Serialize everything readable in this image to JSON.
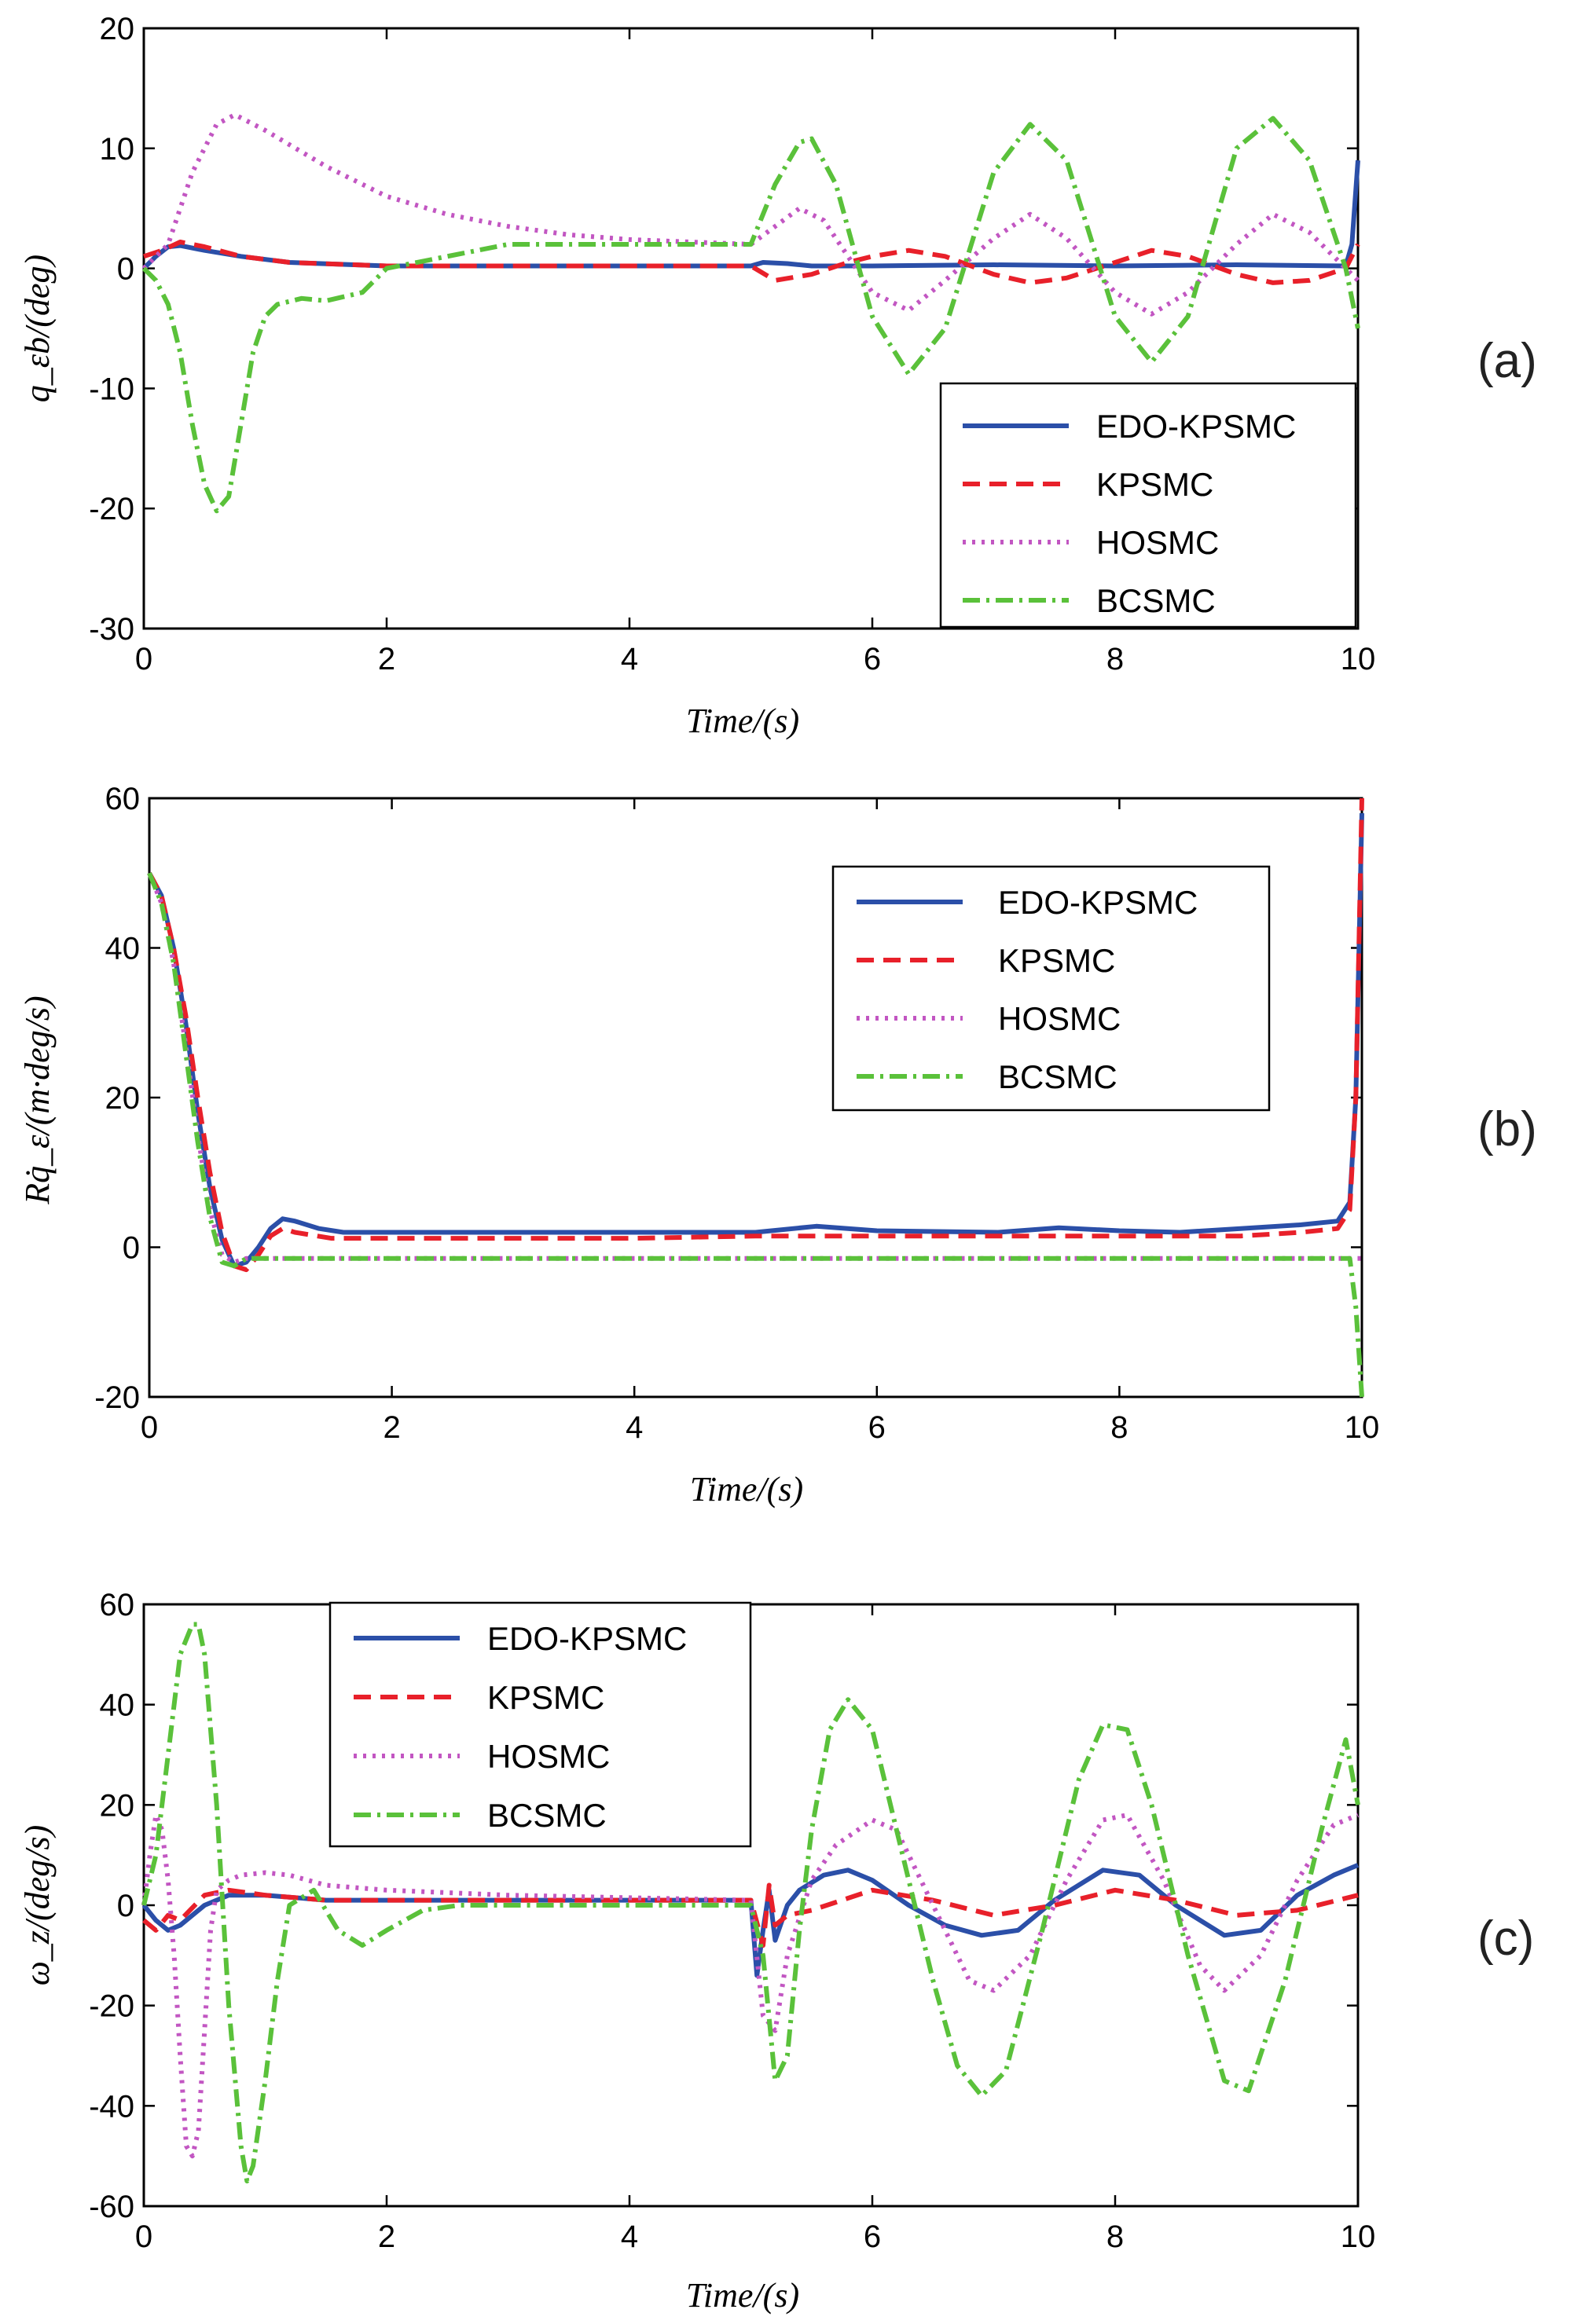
{
  "figure": {
    "panels": [
      {
        "tag": "(a)",
        "ylabel": "q_εb/(deg)",
        "xlabel": "Time/(s)",
        "chart_index": 0
      },
      {
        "tag": "(b)",
        "ylabel": "Rq̇_ε/(m·deg/s)",
        "xlabel": "Time/(s)",
        "chart_index": 1
      },
      {
        "tag": "(c)",
        "ylabel": "ω_z/(deg/s)",
        "xlabel": "Time/(s)",
        "chart_index": 2
      }
    ]
  },
  "chart_data": [
    {
      "type": "line",
      "title": "",
      "xlabel": "Time/(s)",
      "ylabel": "q_εb/(deg)",
      "xlim": [
        0,
        10
      ],
      "ylim": [
        -30,
        20
      ],
      "xticks": [
        0,
        2,
        4,
        6,
        8,
        10
      ],
      "yticks": [
        -30,
        -20,
        -10,
        0,
        10,
        20
      ],
      "legend": "bottom-right",
      "series": [
        {
          "name": "EDO-KPSMC",
          "color": "#2b4fa8",
          "style": "solid",
          "x": [
            0,
            0.1,
            0.2,
            0.3,
            0.5,
            0.8,
            1.2,
            2,
            3,
            4,
            5,
            5.1,
            5.3,
            5.5,
            6,
            7,
            8,
            9,
            9.9,
            9.95,
            10
          ],
          "y": [
            0,
            1,
            1.8,
            1.9,
            1.5,
            1,
            0.5,
            0.2,
            0.2,
            0.2,
            0.2,
            0.5,
            0.4,
            0.2,
            0.2,
            0.3,
            0.2,
            0.3,
            0.2,
            2,
            9
          ]
        },
        {
          "name": "KPSMC",
          "color": "#e8202a",
          "style": "dashed",
          "x": [
            0,
            0.15,
            0.3,
            0.5,
            0.8,
            1.2,
            2,
            3,
            4,
            5,
            5.2,
            5.5,
            5.8,
            6,
            6.3,
            6.6,
            7,
            7.3,
            7.6,
            8,
            8.3,
            8.6,
            9,
            9.3,
            9.6,
            9.9,
            10
          ],
          "y": [
            1,
            1.5,
            2.2,
            1.8,
            1,
            0.5,
            0.2,
            0.2,
            0.2,
            0.2,
            -1,
            -0.5,
            0.5,
            1,
            1.5,
            1,
            -0.5,
            -1.2,
            -0.8,
            0.5,
            1.5,
            1,
            -0.5,
            -1.2,
            -1,
            0,
            2
          ]
        },
        {
          "name": "HOSMC",
          "color": "#c256c2",
          "style": "dotted",
          "x": [
            0,
            0.2,
            0.4,
            0.6,
            0.75,
            1,
            1.5,
            2,
            2.5,
            3,
            3.5,
            4,
            4.5,
            5,
            5.2,
            5.4,
            5.6,
            5.8,
            6,
            6.3,
            6.6,
            7,
            7.3,
            7.6,
            8,
            8.3,
            8.6,
            9,
            9.3,
            9.6,
            10
          ],
          "y": [
            0,
            2,
            8,
            12,
            12.8,
            11.5,
            8.5,
            6,
            4.5,
            3.5,
            2.8,
            2.4,
            2.2,
            2,
            3.5,
            5,
            4,
            1,
            -2,
            -3.5,
            -1,
            2.5,
            4.5,
            2.5,
            -2,
            -3.8,
            -2,
            2,
            4.5,
            3,
            -1
          ]
        },
        {
          "name": "BCSMC",
          "color": "#5ac13a",
          "style": "dashdot",
          "x": [
            0,
            0.1,
            0.2,
            0.3,
            0.4,
            0.5,
            0.6,
            0.7,
            0.8,
            0.9,
            1,
            1.1,
            1.3,
            1.5,
            1.8,
            2,
            2.5,
            3,
            4,
            5,
            5.2,
            5.4,
            5.5,
            5.7,
            6,
            6.3,
            6.6,
            7,
            7.3,
            7.6,
            8,
            8.3,
            8.6,
            9,
            9.3,
            9.6,
            9.9,
            10
          ],
          "y": [
            0,
            -1,
            -3,
            -7,
            -13,
            -18,
            -20.2,
            -19,
            -13,
            -7,
            -4,
            -3,
            -2.5,
            -2.7,
            -2,
            0,
            1,
            2,
            2,
            2,
            7,
            10.5,
            10.8,
            7,
            -4,
            -8.8,
            -5,
            8,
            12,
            9,
            -4,
            -7.8,
            -4,
            10,
            12.5,
            9,
            0,
            -5
          ]
        }
      ]
    },
    {
      "type": "line",
      "title": "",
      "xlabel": "Time/(s)",
      "ylabel": "Rq̇_ε/(m·deg/s)",
      "xlim": [
        0,
        10
      ],
      "ylim": [
        -20,
        60
      ],
      "xticks": [
        0,
        2,
        4,
        6,
        8,
        10
      ],
      "yticks": [
        -20,
        0,
        20,
        40,
        60
      ],
      "legend": "top-right",
      "series": [
        {
          "name": "EDO-KPSMC",
          "color": "#2b4fa8",
          "style": "solid",
          "x": [
            0,
            0.1,
            0.2,
            0.3,
            0.4,
            0.5,
            0.6,
            0.7,
            0.8,
            0.9,
            1,
            1.1,
            1.2,
            1.4,
            1.6,
            2,
            3,
            4,
            5,
            5.5,
            6,
            7,
            7.5,
            8,
            8.5,
            9,
            9.5,
            9.8,
            9.9,
            9.95,
            10
          ],
          "y": [
            50,
            47,
            40,
            30,
            18,
            8,
            1,
            -2.5,
            -2,
            0,
            2.5,
            3.8,
            3.5,
            2.5,
            2,
            2,
            2,
            2,
            2,
            2.8,
            2.2,
            2,
            2.6,
            2.2,
            2,
            2.5,
            3,
            3.5,
            6,
            20,
            58
          ]
        },
        {
          "name": "KPSMC",
          "color": "#e8202a",
          "style": "dashed",
          "x": [
            0,
            0.1,
            0.2,
            0.3,
            0.4,
            0.5,
            0.6,
            0.7,
            0.8,
            0.9,
            1,
            1.1,
            1.2,
            1.5,
            2,
            3,
            4,
            5,
            6,
            7,
            8,
            9,
            9.5,
            9.8,
            9.9,
            9.95,
            10
          ],
          "y": [
            50,
            47,
            40,
            31,
            20,
            10,
            2,
            -2.5,
            -3,
            -1,
            1.5,
            2.5,
            2,
            1.2,
            1.2,
            1.2,
            1.2,
            1.5,
            1.5,
            1.5,
            1.5,
            1.5,
            2,
            2.5,
            5,
            20,
            60
          ]
        },
        {
          "name": "HOSMC",
          "color": "#c256c2",
          "style": "dotted",
          "x": [
            0,
            0.1,
            0.2,
            0.3,
            0.4,
            0.5,
            0.6,
            0.7,
            0.8,
            1,
            2,
            4,
            6,
            8,
            9.9,
            10
          ],
          "y": [
            50,
            46,
            38,
            27,
            15,
            5,
            -1,
            -2,
            -1.5,
            -1.5,
            -1.5,
            -1.5,
            -1.5,
            -1.5,
            -1.5,
            -1.5
          ]
        },
        {
          "name": "BCSMC",
          "color": "#5ac13a",
          "style": "dashdot",
          "x": [
            0,
            0.1,
            0.2,
            0.3,
            0.4,
            0.5,
            0.6,
            0.7,
            0.8,
            1,
            2,
            4,
            6,
            8,
            9.9,
            9.95,
            10
          ],
          "y": [
            50,
            46,
            38,
            26,
            14,
            4,
            -2,
            -2.5,
            -1.5,
            -1.5,
            -1.5,
            -1.5,
            -1.5,
            -1.5,
            -1.5,
            -8,
            -20
          ]
        }
      ]
    },
    {
      "type": "line",
      "title": "",
      "xlabel": "Time/(s)",
      "ylabel": "ω_z/(deg/s)",
      "xlim": [
        0,
        10
      ],
      "ylim": [
        -60,
        60
      ],
      "xticks": [
        0,
        2,
        4,
        6,
        8,
        10
      ],
      "yticks": [
        -60,
        -40,
        -20,
        0,
        20,
        40,
        60
      ],
      "legend": "top-left",
      "series": [
        {
          "name": "EDO-KPSMC",
          "color": "#2b4fa8",
          "style": "solid",
          "x": [
            0,
            0.1,
            0.2,
            0.3,
            0.5,
            0.7,
            1,
            1.5,
            2,
            3,
            4,
            5,
            5.05,
            5.1,
            5.15,
            5.2,
            5.3,
            5.4,
            5.6,
            5.8,
            6,
            6.3,
            6.6,
            6.9,
            7.2,
            7.5,
            7.9,
            8.2,
            8.5,
            8.9,
            9.2,
            9.5,
            9.8,
            10
          ],
          "y": [
            0,
            -3,
            -5,
            -4,
            0,
            2,
            2,
            1,
            1,
            1,
            1,
            1,
            -14,
            -5,
            3,
            -7,
            0,
            3,
            6,
            7,
            5,
            0,
            -4,
            -6,
            -5,
            1,
            7,
            6,
            0,
            -6,
            -5,
            2,
            6,
            8
          ]
        },
        {
          "name": "KPSMC",
          "color": "#e8202a",
          "style": "dashed",
          "x": [
            0,
            0.1,
            0.2,
            0.3,
            0.5,
            0.7,
            1,
            1.5,
            2,
            3,
            4,
            5,
            5.1,
            5.15,
            5.2,
            5.3,
            5.5,
            6,
            6.5,
            7,
            7.5,
            8,
            8.5,
            9,
            9.5,
            10
          ],
          "y": [
            -3,
            -5,
            -2,
            -3,
            2,
            3,
            2,
            1,
            1,
            1,
            1,
            1,
            -8,
            4,
            -4,
            -2,
            -1,
            3,
            1,
            -2,
            0,
            3,
            1,
            -2,
            -1,
            2
          ]
        },
        {
          "name": "HOSMC",
          "color": "#c256c2",
          "style": "dotted",
          "x": [
            0,
            0.05,
            0.1,
            0.15,
            0.2,
            0.25,
            0.3,
            0.35,
            0.4,
            0.45,
            0.5,
            0.55,
            0.6,
            0.7,
            0.8,
            1,
            1.2,
            1.5,
            2,
            3,
            4,
            5,
            5.1,
            5.2,
            5.3,
            5.5,
            5.7,
            6,
            6.2,
            6.5,
            6.8,
            7,
            7.3,
            7.6,
            7.9,
            8.1,
            8.4,
            8.7,
            8.9,
            9.2,
            9.5,
            9.8,
            10
          ],
          "y": [
            0,
            10,
            18,
            15,
            5,
            -10,
            -30,
            -48,
            -50,
            -45,
            -25,
            -5,
            3,
            5,
            6,
            6.5,
            6,
            4,
            3,
            2,
            1.5,
            1,
            -22,
            -25,
            -10,
            5,
            12,
            17,
            15,
            0,
            -15,
            -17,
            -10,
            5,
            17,
            18,
            5,
            -12,
            -17,
            -10,
            5,
            16,
            18
          ]
        },
        {
          "name": "BCSMC",
          "color": "#5ac13a",
          "style": "dashdot",
          "x": [
            0,
            0.1,
            0.2,
            0.3,
            0.4,
            0.45,
            0.5,
            0.6,
            0.7,
            0.8,
            0.85,
            0.9,
            1,
            1.1,
            1.2,
            1.4,
            1.6,
            1.8,
            2,
            2.3,
            2.6,
            3,
            4,
            5,
            5.1,
            5.2,
            5.3,
            5.4,
            5.5,
            5.65,
            5.8,
            6,
            6.2,
            6.5,
            6.7,
            6.9,
            7.1,
            7.4,
            7.7,
            7.9,
            8.1,
            8.3,
            8.6,
            8.9,
            9.1,
            9.4,
            9.7,
            9.9,
            10
          ],
          "y": [
            0,
            10,
            30,
            50,
            56,
            56,
            50,
            20,
            -20,
            -48,
            -55,
            -52,
            -35,
            -15,
            0,
            3,
            -5,
            -8,
            -5,
            -1,
            0,
            0,
            0,
            0,
            -10,
            -35,
            -30,
            -5,
            15,
            35,
            41,
            35,
            15,
            -15,
            -32,
            -38,
            -33,
            -5,
            25,
            36,
            35,
            20,
            -10,
            -35,
            -37,
            -15,
            15,
            33,
            20
          ]
        }
      ]
    }
  ]
}
